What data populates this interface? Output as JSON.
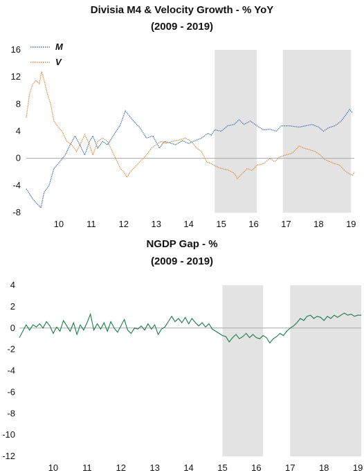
{
  "chart_data": [
    {
      "type": "line",
      "title": "Divisia M4 & Velocity Growth - % YoY",
      "subtitle": "(2009 - 2019)",
      "xlabel": "",
      "ylabel": "",
      "xlim": [
        2009.5,
        2019.6
      ],
      "ylim": [
        -8,
        16
      ],
      "yticks": [
        -8,
        -4,
        0,
        4,
        8,
        12,
        16
      ],
      "xticks": [
        10,
        11,
        12,
        13,
        14,
        15,
        16,
        17,
        18,
        19
      ],
      "legend": "top-left",
      "shaded_periods": [
        [
          2015.3,
          2016.6
        ],
        [
          2017.4,
          2019.5
        ]
      ],
      "series": [
        {
          "name": "M",
          "color": "#3a6fb0",
          "points": [
            [
              2009.5,
              -4.5
            ],
            [
              2009.7,
              -6.0
            ],
            [
              2009.85,
              -6.8
            ],
            [
              2009.95,
              -7.3
            ],
            [
              2010.05,
              -5.0
            ],
            [
              2010.2,
              -4.0
            ],
            [
              2010.35,
              -1.5
            ],
            [
              2010.5,
              -0.7
            ],
            [
              2010.7,
              0.5
            ],
            [
              2010.85,
              2.0
            ],
            [
              2011.0,
              3.3
            ],
            [
              2011.15,
              2.0
            ],
            [
              2011.3,
              0.5
            ],
            [
              2011.45,
              2.5
            ],
            [
              2011.55,
              3.3
            ],
            [
              2011.7,
              1.5
            ],
            [
              2011.85,
              2.5
            ],
            [
              2012.0,
              2.0
            ],
            [
              2012.2,
              3.5
            ],
            [
              2012.4,
              5.0
            ],
            [
              2012.55,
              7.0
            ],
            [
              2012.8,
              5.5
            ],
            [
              2013.0,
              4.5
            ],
            [
              2013.2,
              3.0
            ],
            [
              2013.4,
              3.3
            ],
            [
              2013.6,
              1.5
            ],
            [
              2013.75,
              2.5
            ],
            [
              2013.9,
              2.3
            ],
            [
              2014.1,
              2.0
            ],
            [
              2014.3,
              2.6
            ],
            [
              2014.5,
              2.2
            ],
            [
              2014.7,
              2.6
            ],
            [
              2014.9,
              3.0
            ],
            [
              2015.1,
              3.7
            ],
            [
              2015.2,
              3.4
            ],
            [
              2015.3,
              4.2
            ],
            [
              2015.5,
              4.0
            ],
            [
              2015.7,
              4.8
            ],
            [
              2015.9,
              5.0
            ],
            [
              2016.05,
              5.7
            ],
            [
              2016.2,
              5.0
            ],
            [
              2016.4,
              5.5
            ],
            [
              2016.6,
              4.8
            ],
            [
              2016.8,
              4.2
            ],
            [
              2017.0,
              4.3
            ],
            [
              2017.2,
              4.0
            ],
            [
              2017.35,
              4.8
            ],
            [
              2017.6,
              4.8
            ],
            [
              2017.9,
              4.6
            ],
            [
              2018.1,
              4.8
            ],
            [
              2018.3,
              5.0
            ],
            [
              2018.5,
              4.6
            ],
            [
              2018.65,
              4.0
            ],
            [
              2018.8,
              4.5
            ],
            [
              2019.0,
              4.8
            ],
            [
              2019.2,
              5.5
            ],
            [
              2019.35,
              6.5
            ],
            [
              2019.45,
              7.2
            ],
            [
              2019.55,
              6.7
            ]
          ]
        },
        {
          "name": "V",
          "color": "#e08a3a",
          "points": [
            [
              2009.5,
              6.0
            ],
            [
              2009.6,
              9.5
            ],
            [
              2009.7,
              11.0
            ],
            [
              2009.8,
              11.5
            ],
            [
              2009.9,
              11.0
            ],
            [
              2009.97,
              12.8
            ],
            [
              2010.05,
              11.5
            ],
            [
              2010.15,
              9.5
            ],
            [
              2010.25,
              8.0
            ],
            [
              2010.35,
              5.5
            ],
            [
              2010.5,
              4.5
            ],
            [
              2010.6,
              4.0
            ],
            [
              2010.75,
              2.5
            ],
            [
              2010.9,
              2.0
            ],
            [
              2011.05,
              1.0
            ],
            [
              2011.15,
              2.0
            ],
            [
              2011.3,
              3.5
            ],
            [
              2011.45,
              2.0
            ],
            [
              2011.55,
              0.5
            ],
            [
              2011.7,
              2.5
            ],
            [
              2011.85,
              3.0
            ],
            [
              2012.0,
              2.5
            ],
            [
              2012.1,
              1.5
            ],
            [
              2012.2,
              0.5
            ],
            [
              2012.3,
              -0.5
            ],
            [
              2012.4,
              -1.5
            ],
            [
              2012.5,
              -2.0
            ],
            [
              2012.6,
              -2.8
            ],
            [
              2012.7,
              -2.0
            ],
            [
              2012.8,
              -1.5
            ],
            [
              2013.0,
              -0.5
            ],
            [
              2013.2,
              0.5
            ],
            [
              2013.35,
              1.5
            ],
            [
              2013.5,
              2.0
            ],
            [
              2013.65,
              2.5
            ],
            [
              2013.8,
              2.2
            ],
            [
              2014.0,
              2.5
            ],
            [
              2014.2,
              2.7
            ],
            [
              2014.4,
              3.0
            ],
            [
              2014.6,
              2.4
            ],
            [
              2014.75,
              1.5
            ],
            [
              2014.9,
              1.0
            ],
            [
              2015.05,
              -0.5
            ],
            [
              2015.2,
              -0.8
            ],
            [
              2015.35,
              -1.2
            ],
            [
              2015.5,
              -1.5
            ],
            [
              2015.7,
              -1.7
            ],
            [
              2015.9,
              -2.2
            ],
            [
              2016.0,
              -3.0
            ],
            [
              2016.1,
              -2.5
            ],
            [
              2016.3,
              -1.5
            ],
            [
              2016.45,
              -1.8
            ],
            [
              2016.6,
              -1.0
            ],
            [
              2016.8,
              -0.8
            ],
            [
              2017.0,
              0.0
            ],
            [
              2017.15,
              -0.5
            ],
            [
              2017.3,
              0.2
            ],
            [
              2017.5,
              0.5
            ],
            [
              2017.7,
              0.8
            ],
            [
              2017.9,
              1.8
            ],
            [
              2018.05,
              1.5
            ],
            [
              2018.2,
              1.3
            ],
            [
              2018.4,
              1.0
            ],
            [
              2018.55,
              0.5
            ],
            [
              2018.7,
              -0.2
            ],
            [
              2018.85,
              -0.5
            ],
            [
              2019.0,
              -0.8
            ],
            [
              2019.15,
              -1.0
            ],
            [
              2019.3,
              -1.8
            ],
            [
              2019.45,
              -2.3
            ],
            [
              2019.55,
              -2.5
            ],
            [
              2019.6,
              -2.0
            ]
          ]
        }
      ]
    },
    {
      "type": "line",
      "title": "NGDP Gap - %",
      "subtitle": "(2009 - 2019)",
      "xlabel": "",
      "ylabel": "",
      "xlim": [
        2009.5,
        2019.6
      ],
      "ylim": [
        -12,
        4
      ],
      "yticks": [
        -12,
        -10,
        -8,
        -6,
        -4,
        -2,
        0,
        2,
        4
      ],
      "xticks": [
        10,
        11,
        12,
        13,
        14,
        15,
        16,
        17,
        18,
        19
      ],
      "shaded_periods": [
        [
          2015.5,
          2016.7
        ],
        [
          2017.5,
          2019.6
        ]
      ],
      "series": [
        {
          "name": "",
          "color": "#1a7a45",
          "points": [
            [
              2009.5,
              -0.9
            ],
            [
              2009.6,
              -0.3
            ],
            [
              2009.7,
              0.3
            ],
            [
              2009.8,
              -0.2
            ],
            [
              2009.9,
              0.3
            ],
            [
              2010.0,
              0.1
            ],
            [
              2010.1,
              0.4
            ],
            [
              2010.2,
              0.0
            ],
            [
              2010.3,
              0.6
            ],
            [
              2010.4,
              0.2
            ],
            [
              2010.5,
              -0.5
            ],
            [
              2010.6,
              0.1
            ],
            [
              2010.7,
              -0.3
            ],
            [
              2010.8,
              0.7
            ],
            [
              2010.9,
              0.2
            ],
            [
              2011.0,
              -0.3
            ],
            [
              2011.1,
              0.5
            ],
            [
              2011.2,
              -0.6
            ],
            [
              2011.3,
              0.3
            ],
            [
              2011.4,
              -0.2
            ],
            [
              2011.5,
              0.5
            ],
            [
              2011.6,
              1.3
            ],
            [
              2011.7,
              -0.2
            ],
            [
              2011.8,
              0.4
            ],
            [
              2011.9,
              -0.1
            ],
            [
              2012.0,
              0.5
            ],
            [
              2012.1,
              -0.3
            ],
            [
              2012.2,
              0.6
            ],
            [
              2012.3,
              0.0
            ],
            [
              2012.4,
              -0.4
            ],
            [
              2012.5,
              0.2
            ],
            [
              2012.6,
              0.8
            ],
            [
              2012.7,
              -0.2
            ],
            [
              2012.8,
              -0.5
            ],
            [
              2012.9,
              0.0
            ],
            [
              2013.0,
              -0.1
            ],
            [
              2013.1,
              0.2
            ],
            [
              2013.2,
              -0.2
            ],
            [
              2013.3,
              0.4
            ],
            [
              2013.4,
              -0.1
            ],
            [
              2013.5,
              0.3
            ],
            [
              2013.6,
              -0.6
            ],
            [
              2013.7,
              -0.1
            ],
            [
              2013.8,
              0.1
            ],
            [
              2013.9,
              0.6
            ],
            [
              2014.0,
              1.1
            ],
            [
              2014.1,
              0.6
            ],
            [
              2014.2,
              0.9
            ],
            [
              2014.3,
              0.5
            ],
            [
              2014.4,
              1.0
            ],
            [
              2014.5,
              0.4
            ],
            [
              2014.6,
              0.9
            ],
            [
              2014.7,
              0.5
            ],
            [
              2014.8,
              0.2
            ],
            [
              2014.9,
              0.5
            ],
            [
              2015.0,
              0.1
            ],
            [
              2015.1,
              0.4
            ],
            [
              2015.2,
              -0.1
            ],
            [
              2015.3,
              -0.3
            ],
            [
              2015.4,
              -0.5
            ],
            [
              2015.5,
              -0.7
            ],
            [
              2015.6,
              -0.8
            ],
            [
              2015.7,
              -1.3
            ],
            [
              2015.8,
              -0.9
            ],
            [
              2015.9,
              -0.6
            ],
            [
              2016.0,
              -1.0
            ],
            [
              2016.1,
              -0.8
            ],
            [
              2016.2,
              -0.5
            ],
            [
              2016.3,
              -0.9
            ],
            [
              2016.4,
              -0.6
            ],
            [
              2016.5,
              -0.9
            ],
            [
              2016.6,
              -1.0
            ],
            [
              2016.7,
              -0.7
            ],
            [
              2016.8,
              -0.9
            ],
            [
              2016.9,
              -1.4
            ],
            [
              2017.0,
              -1.0
            ],
            [
              2017.1,
              -0.8
            ],
            [
              2017.2,
              -0.5
            ],
            [
              2017.3,
              -0.7
            ],
            [
              2017.4,
              -0.3
            ],
            [
              2017.5,
              0.0
            ],
            [
              2017.6,
              0.2
            ],
            [
              2017.7,
              0.5
            ],
            [
              2017.8,
              0.9
            ],
            [
              2017.9,
              0.7
            ],
            [
              2018.0,
              1.1
            ],
            [
              2018.1,
              1.2
            ],
            [
              2018.2,
              0.9
            ],
            [
              2018.3,
              1.1
            ],
            [
              2018.4,
              1.0
            ],
            [
              2018.5,
              0.7
            ],
            [
              2018.6,
              1.1
            ],
            [
              2018.7,
              0.9
            ],
            [
              2018.8,
              1.2
            ],
            [
              2018.9,
              1.0
            ],
            [
              2019.0,
              1.2
            ],
            [
              2019.1,
              1.4
            ],
            [
              2019.2,
              1.2
            ],
            [
              2019.3,
              1.3
            ],
            [
              2019.4,
              1.1
            ],
            [
              2019.5,
              1.2
            ],
            [
              2019.6,
              1.2
            ]
          ]
        }
      ]
    }
  ]
}
